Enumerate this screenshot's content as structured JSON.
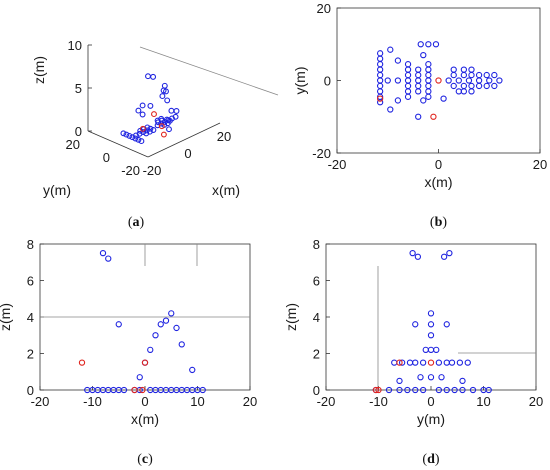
{
  "colors": {
    "blue": "#1f24e0",
    "red": "#e0251f",
    "axis": "#333333",
    "guide": "#888888"
  },
  "chart_data": [
    {
      "id": "a",
      "type": "scatter",
      "projection": "3d",
      "panel_label": "a",
      "xlabel": "x(m)",
      "ylabel": "y(m)",
      "zlabel": "z(m)",
      "xlim": [
        -20,
        20
      ],
      "ylim": [
        -20,
        20
      ],
      "zlim": [
        0,
        10
      ],
      "xticks": [
        "-20",
        "0",
        "20"
      ],
      "yticks": [
        "20",
        "0",
        "-20"
      ],
      "zticks": [
        "0",
        "5",
        "10"
      ],
      "series": [
        {
          "color": "blue",
          "points": [
            [
              -12,
              -6,
              0
            ],
            [
              -12,
              -4,
              0
            ],
            [
              -12,
              -2,
              0
            ],
            [
              -12,
              0,
              0
            ],
            [
              -12,
              2,
              0
            ],
            [
              -12,
              4,
              0
            ],
            [
              -12,
              6,
              0
            ],
            [
              -10,
              0,
              0
            ],
            [
              -8,
              0,
              0
            ],
            [
              -6,
              0,
              0
            ],
            [
              -4,
              0,
              0
            ],
            [
              -2,
              0,
              0
            ],
            [
              2,
              0,
              0
            ],
            [
              4,
              0,
              0
            ],
            [
              6,
              0,
              0
            ],
            [
              8,
              0,
              0
            ],
            [
              10,
              0,
              0
            ],
            [
              12,
              0,
              0
            ],
            [
              -6,
              -2,
              0
            ],
            [
              -6,
              2,
              0
            ],
            [
              -4,
              -2,
              0
            ],
            [
              -4,
              2,
              0
            ],
            [
              -2,
              -2,
              0
            ],
            [
              -2,
              2,
              0
            ],
            [
              4,
              -2,
              0
            ],
            [
              4,
              2,
              0
            ],
            [
              6,
              -2,
              0
            ],
            [
              6,
              2,
              0
            ],
            [
              8,
              -1,
              0
            ],
            [
              8,
              1,
              0
            ],
            [
              -10,
              -8,
              7.5
            ],
            [
              -8,
              -9,
              7.3
            ],
            [
              -7,
              -6,
              3.6
            ],
            [
              -3,
              4,
              2.5
            ],
            [
              -1,
              -6,
              1.5
            ],
            [
              3,
              -8,
              2.2
            ],
            [
              4,
              -4,
              3
            ],
            [
              5,
              -2,
              3.8
            ],
            [
              6,
              0,
              4.2
            ],
            [
              7,
              2,
              3.4
            ],
            [
              8,
              4,
              2.5
            ],
            [
              10,
              -3,
              1.1
            ],
            [
              -2,
              8,
              1.5
            ],
            [
              -3,
              -6,
              1.5
            ],
            [
              0,
              -10,
              0.5
            ],
            [
              2,
              10,
              0.5
            ]
          ]
        },
        {
          "color": "red",
          "points": [
            [
              -12,
              -7,
              1.5
            ],
            [
              0,
              0,
              1.5
            ],
            [
              -2,
              -9,
              0
            ],
            [
              1,
              -4,
              0.3
            ]
          ]
        }
      ]
    },
    {
      "id": "b",
      "type": "scatter",
      "panel_label": "b",
      "xlabel": "x(m)",
      "ylabel": "y(m)",
      "xlim": [
        -20,
        20
      ],
      "ylim": [
        -20,
        20
      ],
      "xticks": [
        -20,
        0,
        20
      ],
      "yticks": [
        -20,
        0,
        20
      ],
      "series": [
        {
          "color": "blue",
          "points": [
            [
              -11.5,
              -6
            ],
            [
              -11.5,
              -4.5
            ],
            [
              -11.5,
              -3
            ],
            [
              -11.5,
              -1.5
            ],
            [
              -11.5,
              0
            ],
            [
              -11.5,
              1.5
            ],
            [
              -11.5,
              3
            ],
            [
              -11.5,
              4.5
            ],
            [
              -11.5,
              6
            ],
            [
              -11.5,
              7.5
            ],
            [
              -10,
              0
            ],
            [
              -8,
              0
            ],
            [
              -6,
              0
            ],
            [
              -4,
              0
            ],
            [
              -2,
              0
            ],
            [
              2,
              0
            ],
            [
              4,
              0
            ],
            [
              6,
              0
            ],
            [
              8,
              0
            ],
            [
              10,
              0
            ],
            [
              12,
              0
            ],
            [
              -9.5,
              -8
            ],
            [
              -9.5,
              8.5
            ],
            [
              -8,
              -5.5
            ],
            [
              -8,
              5.5
            ],
            [
              -6,
              -4.5
            ],
            [
              -6,
              -3
            ],
            [
              -6,
              -1.5
            ],
            [
              -6,
              1.5
            ],
            [
              -6,
              3
            ],
            [
              -6,
              4.5
            ],
            [
              -4,
              -3
            ],
            [
              -4,
              -1.5
            ],
            [
              -4,
              1.5
            ],
            [
              -4,
              3
            ],
            [
              -2,
              -4.5
            ],
            [
              -2,
              -3
            ],
            [
              -2,
              -1.5
            ],
            [
              -2,
              1.5
            ],
            [
              -2,
              3
            ],
            [
              -2,
              4.5
            ],
            [
              -3.5,
              10
            ],
            [
              -2,
              10
            ],
            [
              -0.5,
              10
            ],
            [
              -4,
              -10
            ],
            [
              -3,
              -5.5
            ],
            [
              -3,
              7
            ],
            [
              1,
              -5
            ],
            [
              3,
              -1.5
            ],
            [
              3,
              1.5
            ],
            [
              3,
              3
            ],
            [
              4,
              -3
            ],
            [
              5,
              -3
            ],
            [
              5,
              -1.5
            ],
            [
              5,
              1.5
            ],
            [
              5,
              3
            ],
            [
              6.5,
              -3
            ],
            [
              6.5,
              -1.5
            ],
            [
              6.5,
              1.5
            ],
            [
              6.5,
              3
            ],
            [
              8,
              -1.5
            ],
            [
              8,
              1.5
            ],
            [
              9.5,
              -1.5
            ],
            [
              9.5,
              1.5
            ],
            [
              11,
              -1.5
            ],
            [
              11,
              1.5
            ]
          ]
        },
        {
          "color": "red",
          "points": [
            [
              -11.5,
              -5
            ],
            [
              0,
              0
            ],
            [
              -1,
              -10
            ]
          ]
        }
      ]
    },
    {
      "id": "c",
      "type": "scatter",
      "panel_label": "c",
      "xlabel": "x(m)",
      "ylabel": "z(m)",
      "xlim": [
        -20,
        20
      ],
      "ylim": [
        0,
        8
      ],
      "xticks": [
        -20,
        -10,
        0,
        10,
        20
      ],
      "yticks": [
        0,
        2,
        4,
        6,
        8
      ],
      "series": [
        {
          "color": "blue",
          "points": [
            [
              -11,
              0
            ],
            [
              -10,
              0
            ],
            [
              -9,
              0
            ],
            [
              -8,
              0
            ],
            [
              -7,
              0
            ],
            [
              -6,
              0
            ],
            [
              -5,
              0
            ],
            [
              -4,
              0
            ],
            [
              -2,
              0
            ],
            [
              -1,
              0
            ],
            [
              1,
              0
            ],
            [
              2,
              0
            ],
            [
              3,
              0
            ],
            [
              4,
              0
            ],
            [
              5,
              0
            ],
            [
              6,
              0
            ],
            [
              7,
              0
            ],
            [
              8,
              0
            ],
            [
              9,
              0
            ],
            [
              10,
              0
            ],
            [
              11,
              0
            ],
            [
              -8,
              7.5
            ],
            [
              -7,
              7.2
            ],
            [
              -5,
              3.6
            ],
            [
              -1,
              0.7
            ],
            [
              0,
              1.5
            ],
            [
              1,
              2.2
            ],
            [
              2,
              3
            ],
            [
              3,
              3.6
            ],
            [
              4,
              3.8
            ],
            [
              5,
              4.2
            ],
            [
              6,
              3.4
            ],
            [
              7,
              2.5
            ],
            [
              9,
              1.1
            ]
          ]
        },
        {
          "color": "red",
          "points": [
            [
              -12,
              1.5
            ],
            [
              0,
              1.5
            ],
            [
              -2,
              0
            ],
            [
              -0.5,
              0
            ]
          ]
        }
      ]
    },
    {
      "id": "d",
      "type": "scatter",
      "panel_label": "d",
      "xlabel": "y(m)",
      "ylabel": "z(m)",
      "xlim": [
        -20,
        20
      ],
      "ylim": [
        0,
        8
      ],
      "xticks": [
        -20,
        -10,
        0,
        10,
        20
      ],
      "yticks": [
        0,
        2,
        4,
        6,
        8
      ],
      "series": [
        {
          "color": "blue",
          "points": [
            [
              -10.5,
              0
            ],
            [
              -8,
              0
            ],
            [
              -6,
              0
            ],
            [
              -4.5,
              0
            ],
            [
              -3,
              0
            ],
            [
              -1.5,
              0
            ],
            [
              1.5,
              0
            ],
            [
              3,
              0
            ],
            [
              4.5,
              0
            ],
            [
              6,
              0
            ],
            [
              8,
              0
            ],
            [
              10,
              0
            ],
            [
              11,
              0
            ],
            [
              -3.5,
              7.5
            ],
            [
              -2.5,
              7.3
            ],
            [
              2.5,
              7.3
            ],
            [
              3.5,
              7.5
            ],
            [
              -3,
              3.6
            ],
            [
              0,
              4.2
            ],
            [
              0,
              3.6
            ],
            [
              0,
              3
            ],
            [
              0,
              2.2
            ],
            [
              0,
              0.7
            ],
            [
              3,
              3.6
            ],
            [
              -1,
              2.2
            ],
            [
              1,
              2.2
            ],
            [
              -7,
              1.5
            ],
            [
              -5.5,
              1.5
            ],
            [
              -4,
              1.5
            ],
            [
              -3,
              1.5
            ],
            [
              -1.5,
              1.5
            ],
            [
              1.5,
              1.5
            ],
            [
              3,
              1.5
            ],
            [
              4,
              1.5
            ],
            [
              5.5,
              1.5
            ],
            [
              7,
              1.5
            ],
            [
              -2,
              0.7
            ],
            [
              2,
              0.7
            ],
            [
              -6,
              0.5
            ],
            [
              6,
              0.5
            ]
          ]
        },
        {
          "color": "red",
          "points": [
            [
              -6,
              1.5
            ],
            [
              0,
              1.5
            ],
            [
              -10.5,
              0
            ],
            [
              -10,
              0
            ]
          ]
        }
      ]
    }
  ]
}
